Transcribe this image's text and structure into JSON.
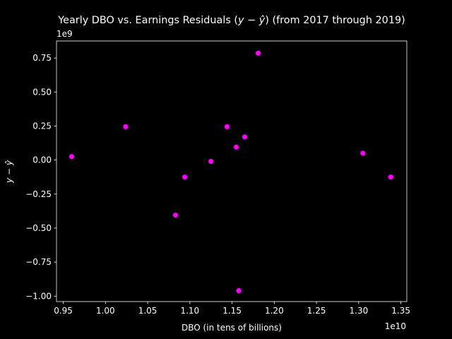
{
  "chart_data": {
    "type": "scatter",
    "title": "Yearly DBO vs. Earnings Residuals (y − ŷ) (from 2017 through 2019)",
    "xlabel": "DBO (in tens of billions)",
    "ylabel": "y − ŷ",
    "x_offset_label": "1e10",
    "y_offset_label": "1e9",
    "xlim": [
      0.942,
      1.357
    ],
    "ylim": [
      -1.04,
      0.875
    ],
    "x_ticks": [
      0.95,
      1.0,
      1.05,
      1.1,
      1.15,
      1.2,
      1.25,
      1.3,
      1.35
    ],
    "x_tick_labels": [
      "0.95",
      "1.00",
      "1.05",
      "1.10",
      "1.15",
      "1.20",
      "1.25",
      "1.30",
      "1.35"
    ],
    "y_ticks": [
      0.75,
      0.5,
      0.25,
      0.0,
      -0.25,
      -0.5,
      -0.75,
      -1.0
    ],
    "y_tick_labels": [
      "0.75",
      "0.50",
      "0.25",
      "0.00",
      "−0.25",
      "−0.50",
      "−0.75",
      "−1.00"
    ],
    "grid": false,
    "point_color": "#ff00ff",
    "background_color": "#000000",
    "foreground_color": "#ffffff",
    "series": [
      {
        "points": [
          {
            "x": 0.96,
            "y": 0.025
          },
          {
            "x": 1.024,
            "y": 0.245
          },
          {
            "x": 1.083,
            "y": -0.405
          },
          {
            "x": 1.094,
            "y": -0.125
          },
          {
            "x": 1.125,
            "y": -0.01
          },
          {
            "x": 1.144,
            "y": 0.245
          },
          {
            "x": 1.155,
            "y": 0.095
          },
          {
            "x": 1.158,
            "y": -0.96
          },
          {
            "x": 1.165,
            "y": 0.17
          },
          {
            "x": 1.181,
            "y": 0.785
          },
          {
            "x": 1.305,
            "y": 0.05
          },
          {
            "x": 1.338,
            "y": -0.125
          }
        ]
      }
    ]
  }
}
